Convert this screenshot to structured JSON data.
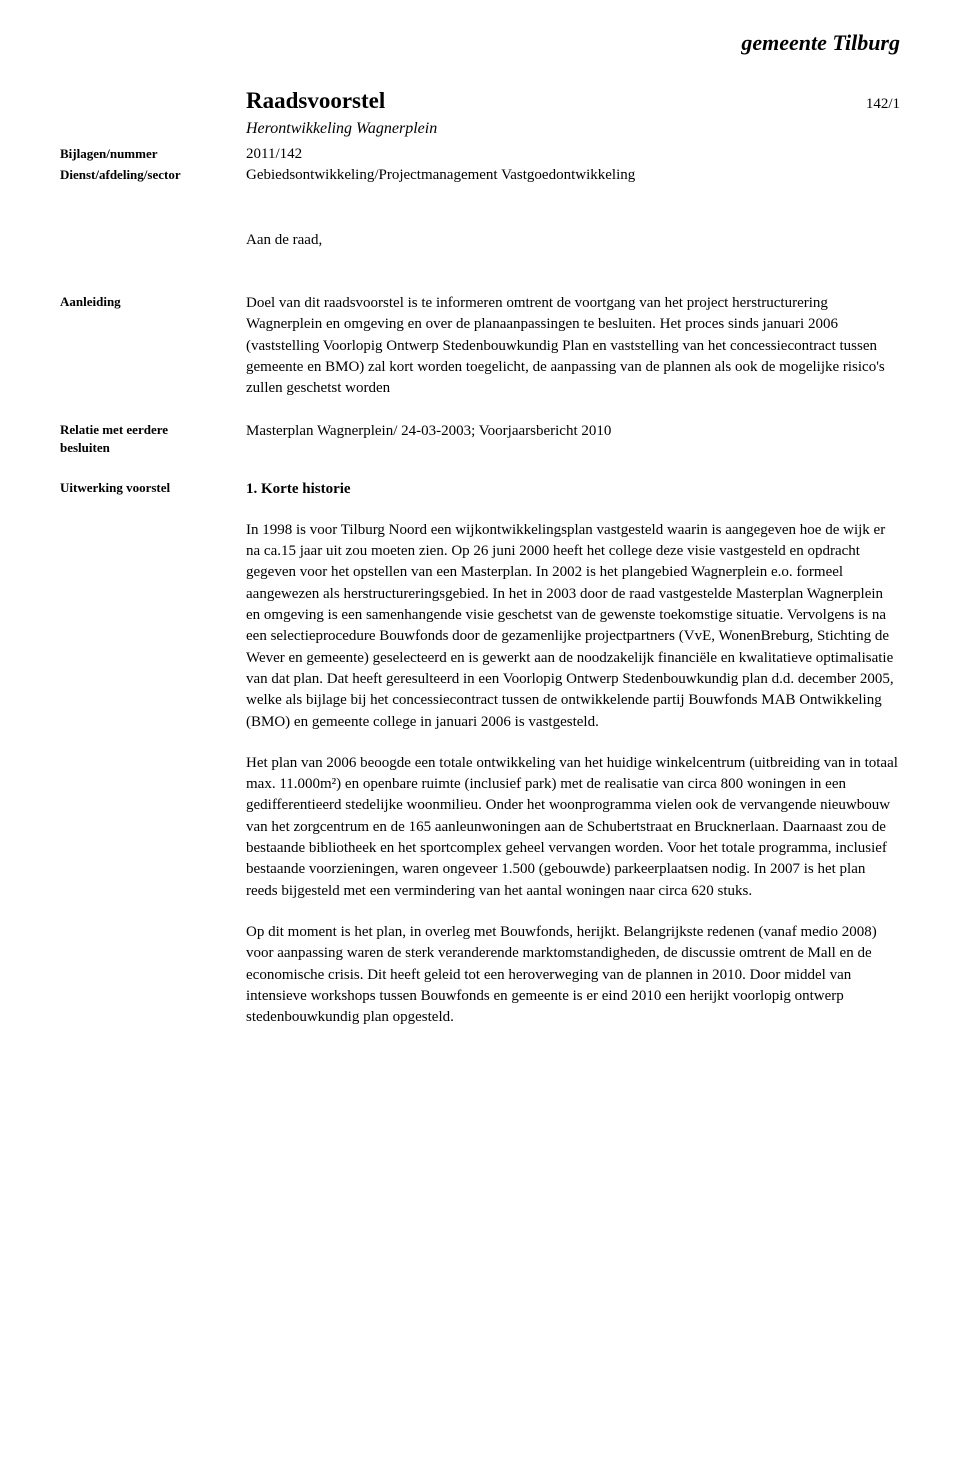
{
  "logo": "gemeente Tilburg",
  "title": "Raadsvoorstel",
  "title_ref": "142/1",
  "subtitle": "Herontwikkeling Wagnerplein",
  "meta": {
    "bijlagen_label": "Bijlagen/nummer",
    "bijlagen_value": "2011/142",
    "dienst_label": "Dienst/afdeling/sector",
    "dienst_value": "Gebiedsontwikkeling/Projectmanagement Vastgoedontwikkeling"
  },
  "salutation": "Aan de raad,",
  "aanleiding": {
    "label": "Aanleiding",
    "text": "Doel van dit raadsvoorstel is te informeren omtrent de voortgang van het project herstructurering Wagnerplein en omgeving en over de planaanpassingen te besluiten. Het proces sinds januari 2006 (vaststelling Voorlopig Ontwerp Stedenbouwkundig Plan en vaststelling van het concessiecontract tussen gemeente en BMO) zal kort worden toegelicht, de aanpassing van de plannen als ook de mogelijke risico's zullen geschetst worden"
  },
  "relatie": {
    "label_line1": "Relatie met eerdere",
    "label_line2": "besluiten",
    "text": "Masterplan Wagnerplein/ 24-03-2003; Voorjaarsbericht 2010"
  },
  "uitwerking": {
    "label": "Uitwerking voorstel",
    "heading": "1.   Korte historie",
    "p1": "In 1998 is voor Tilburg Noord een wijkontwikkelingsplan vastgesteld waarin is aangegeven hoe de wijk er na ca.15 jaar uit zou moeten zien. Op 26 juni 2000 heeft het college deze visie vastgesteld en opdracht gegeven voor het opstellen van een Masterplan. In 2002 is het plangebied Wagnerplein e.o. formeel aangewezen als herstructureringsgebied. In het in 2003 door de raad vastgestelde Masterplan Wagnerplein en omgeving is een samenhangende visie geschetst van de gewenste toekomstige situatie. Vervolgens is na een selectieprocedure Bouwfonds door de gezamenlijke projectpartners (VvE, WonenBreburg, Stichting de Wever en gemeente) geselecteerd en is gewerkt aan de noodzakelijk financiële en kwalitatieve optimalisatie van dat plan. Dat heeft geresulteerd in een Voorlopig Ontwerp Stedenbouwkundig plan d.d. december 2005, welke als bijlage bij het concessiecontract tussen de ontwikkelende partij Bouwfonds MAB Ontwikkeling (BMO) en gemeente college in januari 2006 is vastgesteld.",
    "p2": "Het plan van 2006 beoogde een totale ontwikkeling van het huidige winkelcentrum (uitbreiding van in totaal max. 11.000m²) en openbare ruimte (inclusief park) met de realisatie van circa 800 woningen in een gedifferentieerd stedelijke woonmilieu. Onder het woonprogramma vielen ook de vervangende nieuwbouw van het zorgcentrum en de 165 aanleunwoningen aan de Schubertstraat en Brucknerlaan. Daarnaast zou de bestaande bibliotheek en het sportcomplex geheel vervangen worden. Voor het totale programma, inclusief bestaande voorzieningen, waren ongeveer 1.500 (gebouwde) parkeerplaatsen nodig. In 2007 is het plan reeds bijgesteld met een vermindering van het aantal woningen naar circa 620 stuks.",
    "p3": "Op dit moment is het plan, in overleg met Bouwfonds, herijkt. Belangrijkste redenen (vanaf medio 2008) voor aanpassing waren de sterk veranderende marktomstandigheden, de discussie omtrent de Mall en de economische crisis. Dit heeft geleid tot een heroverweging van de plannen in 2010. Door middel van intensieve workshops tussen Bouwfonds en gemeente is er eind 2010 een herijkt voorlopig ontwerp stedenbouwkundig plan opgesteld."
  }
}
